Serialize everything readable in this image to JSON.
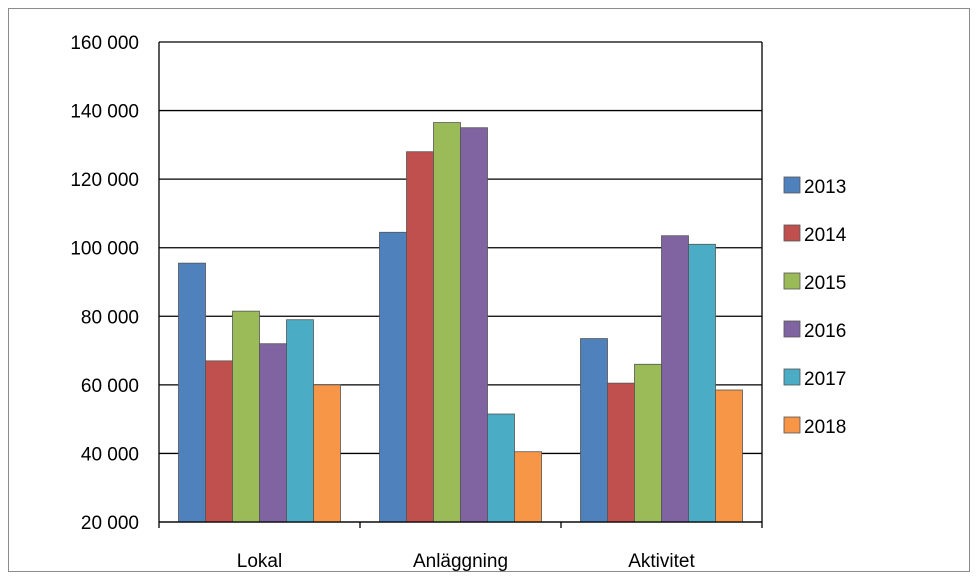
{
  "chart_data": {
    "type": "bar",
    "title": "",
    "xlabel": "",
    "ylabel": "",
    "categories": [
      "Lokal",
      "Anläggning",
      "Aktivitet"
    ],
    "ylim": [
      20000,
      160000
    ],
    "yticks": [
      20000,
      40000,
      60000,
      80000,
      100000,
      120000,
      140000,
      160000
    ],
    "ytick_labels": [
      "20 000",
      "40 000",
      "60 000",
      "80 000",
      "100 000",
      "120 000",
      "140 000",
      "160 000"
    ],
    "grid": true,
    "legend_position": "right",
    "series": [
      {
        "name": "2013",
        "color": "#4f81bd",
        "values": [
          95500,
          104500,
          73500
        ]
      },
      {
        "name": "2014",
        "color": "#c0504d",
        "values": [
          67000,
          128000,
          60500
        ]
      },
      {
        "name": "2015",
        "color": "#9bbb59",
        "values": [
          81500,
          136500,
          66000
        ]
      },
      {
        "name": "2016",
        "color": "#8064a2",
        "values": [
          72000,
          135000,
          103500
        ]
      },
      {
        "name": "2017",
        "color": "#4bacc6",
        "values": [
          79000,
          51500,
          101000
        ]
      },
      {
        "name": "2018",
        "color": "#f79646",
        "values": [
          60000,
          40500,
          58500
        ]
      }
    ]
  }
}
